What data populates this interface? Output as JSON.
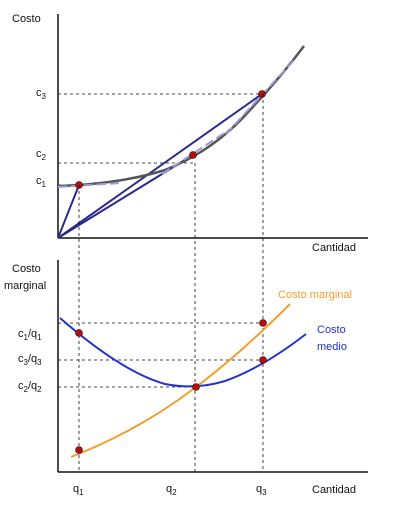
{
  "top_panel": {
    "y_axis_label": "Costo",
    "x_axis_label": "Cantidad",
    "cost_ticks": [
      {
        "letter": "c",
        "sub": "3"
      },
      {
        "letter": "c",
        "sub": "2"
      },
      {
        "letter": "c",
        "sub": "1"
      }
    ]
  },
  "bottom_panel": {
    "y_axis_label_line1": "Costo",
    "y_axis_label_line2": "marginal",
    "x_axis_label": "Cantidad",
    "ratio_ticks": [
      {
        "num": "c",
        "num_sub": "1",
        "den": "q",
        "den_sub": "1"
      },
      {
        "num": "c",
        "num_sub": "3",
        "den": "q",
        "den_sub": "3"
      },
      {
        "num": "c",
        "num_sub": "2",
        "den": "q",
        "den_sub": "2"
      }
    ],
    "quantity_ticks": [
      {
        "letter": "q",
        "sub": "1"
      },
      {
        "letter": "q",
        "sub": "2"
      },
      {
        "letter": "q",
        "sub": "3"
      }
    ],
    "legend_marginal": "Costo marginal",
    "legend_average_line1": "Costo",
    "legend_average_line2": "medio"
  },
  "colors": {
    "axis": "#111111",
    "total_cost_curve": "#555555",
    "tangent_dash": "#9a9ad8",
    "rays": "#2a2a8c",
    "marginal_cost": "#f0a030",
    "average_cost": "#2233cc",
    "legend_marginal_text": "#f0a030",
    "legend_average_text": "#2233cc",
    "points": "#b01010"
  }
}
